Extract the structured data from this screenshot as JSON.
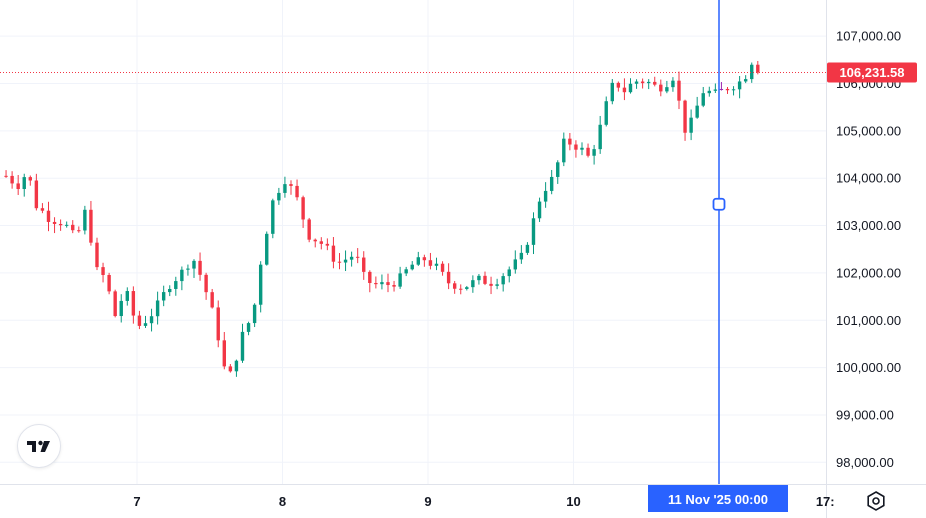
{
  "chart_data": {
    "type": "candlestick",
    "y_axis": {
      "side": "right",
      "ticks": [
        98000,
        99000,
        100000,
        101000,
        102000,
        103000,
        104000,
        105000,
        106000,
        107000
      ],
      "tick_labels": [
        "98,000.00",
        "99,000.00",
        "100,000.00",
        "101,000.00",
        "102,000.00",
        "103,000.00",
        "104,000.00",
        "105,000.00",
        "106,000.00",
        "107,000.00"
      ],
      "range": [
        97800,
        107800
      ]
    },
    "x_axis": {
      "labels": [
        "7",
        "8",
        "9",
        "10",
        "17:"
      ],
      "label_positions_days": [
        7,
        8,
        9,
        10,
        11.73
      ],
      "range_days": [
        6.1,
        11.8
      ]
    },
    "grid": true,
    "colors": {
      "up": "#089981",
      "down": "#f23645",
      "highlight": "#9c27b0",
      "cursor": "#2962ff",
      "last_price_line": "#f23645"
    },
    "last_price": {
      "value": 106231.58,
      "label": "106,231.58"
    },
    "crosshair": {
      "label": "11 Nov '25   00:00",
      "date_days": 11.0,
      "value": 103450
    },
    "keyframes": [
      [
        6.1,
        104050
      ],
      [
        6.18,
        103850
      ],
      [
        6.25,
        104150
      ],
      [
        6.3,
        103450
      ],
      [
        6.4,
        103150
      ],
      [
        6.5,
        103050
      ],
      [
        6.58,
        102700
      ],
      [
        6.65,
        103350
      ],
      [
        6.72,
        102050
      ],
      [
        6.78,
        101900
      ],
      [
        6.85,
        101100
      ],
      [
        6.92,
        101650
      ],
      [
        7.0,
        100850
      ],
      [
        7.08,
        101050
      ],
      [
        7.15,
        101350
      ],
      [
        7.22,
        101750
      ],
      [
        7.32,
        102050
      ],
      [
        7.38,
        102350
      ],
      [
        7.45,
        101850
      ],
      [
        7.52,
        101150
      ],
      [
        7.57,
        100500
      ],
      [
        7.62,
        99650
      ],
      [
        7.68,
        100200
      ],
      [
        7.72,
        100650
      ],
      [
        7.8,
        101150
      ],
      [
        7.86,
        102450
      ],
      [
        7.94,
        103600
      ],
      [
        8.02,
        104000
      ],
      [
        8.1,
        103550
      ],
      [
        8.18,
        102800
      ],
      [
        8.28,
        102600
      ],
      [
        8.38,
        102200
      ],
      [
        8.5,
        102400
      ],
      [
        8.56,
        101900
      ],
      [
        8.62,
        101750
      ],
      [
        8.72,
        101750
      ],
      [
        8.8,
        101850
      ],
      [
        8.88,
        102150
      ],
      [
        8.98,
        102300
      ],
      [
        9.06,
        102100
      ],
      [
        9.14,
        101800
      ],
      [
        9.24,
        101700
      ],
      [
        9.35,
        101850
      ],
      [
        9.45,
        101800
      ],
      [
        9.55,
        102050
      ],
      [
        9.65,
        102350
      ],
      [
        9.72,
        103050
      ],
      [
        9.78,
        103700
      ],
      [
        9.86,
        104000
      ],
      [
        9.94,
        104800
      ],
      [
        10.04,
        104650
      ],
      [
        10.1,
        104450
      ],
      [
        10.16,
        104800
      ],
      [
        10.22,
        105500
      ],
      [
        10.28,
        106050
      ],
      [
        10.35,
        105850
      ],
      [
        10.42,
        106050
      ],
      [
        10.5,
        106050
      ],
      [
        10.58,
        105900
      ],
      [
        10.65,
        106050
      ],
      [
        10.7,
        106200
      ],
      [
        10.75,
        105000
      ],
      [
        10.8,
        105100
      ],
      [
        10.86,
        105600
      ],
      [
        10.9,
        105900
      ],
      [
        10.96,
        105750
      ],
      [
        11.02,
        105850
      ],
      [
        11.08,
        105950
      ],
      [
        11.12,
        106000
      ],
      [
        11.18,
        106100
      ],
      [
        11.2,
        106600
      ],
      [
        11.24,
        106400
      ],
      [
        11.28,
        106231.58
      ]
    ],
    "highlight_candle_days": 11.01
  },
  "ui": {
    "logo_label": "TradingView",
    "settings_icon": "gear-icon"
  }
}
